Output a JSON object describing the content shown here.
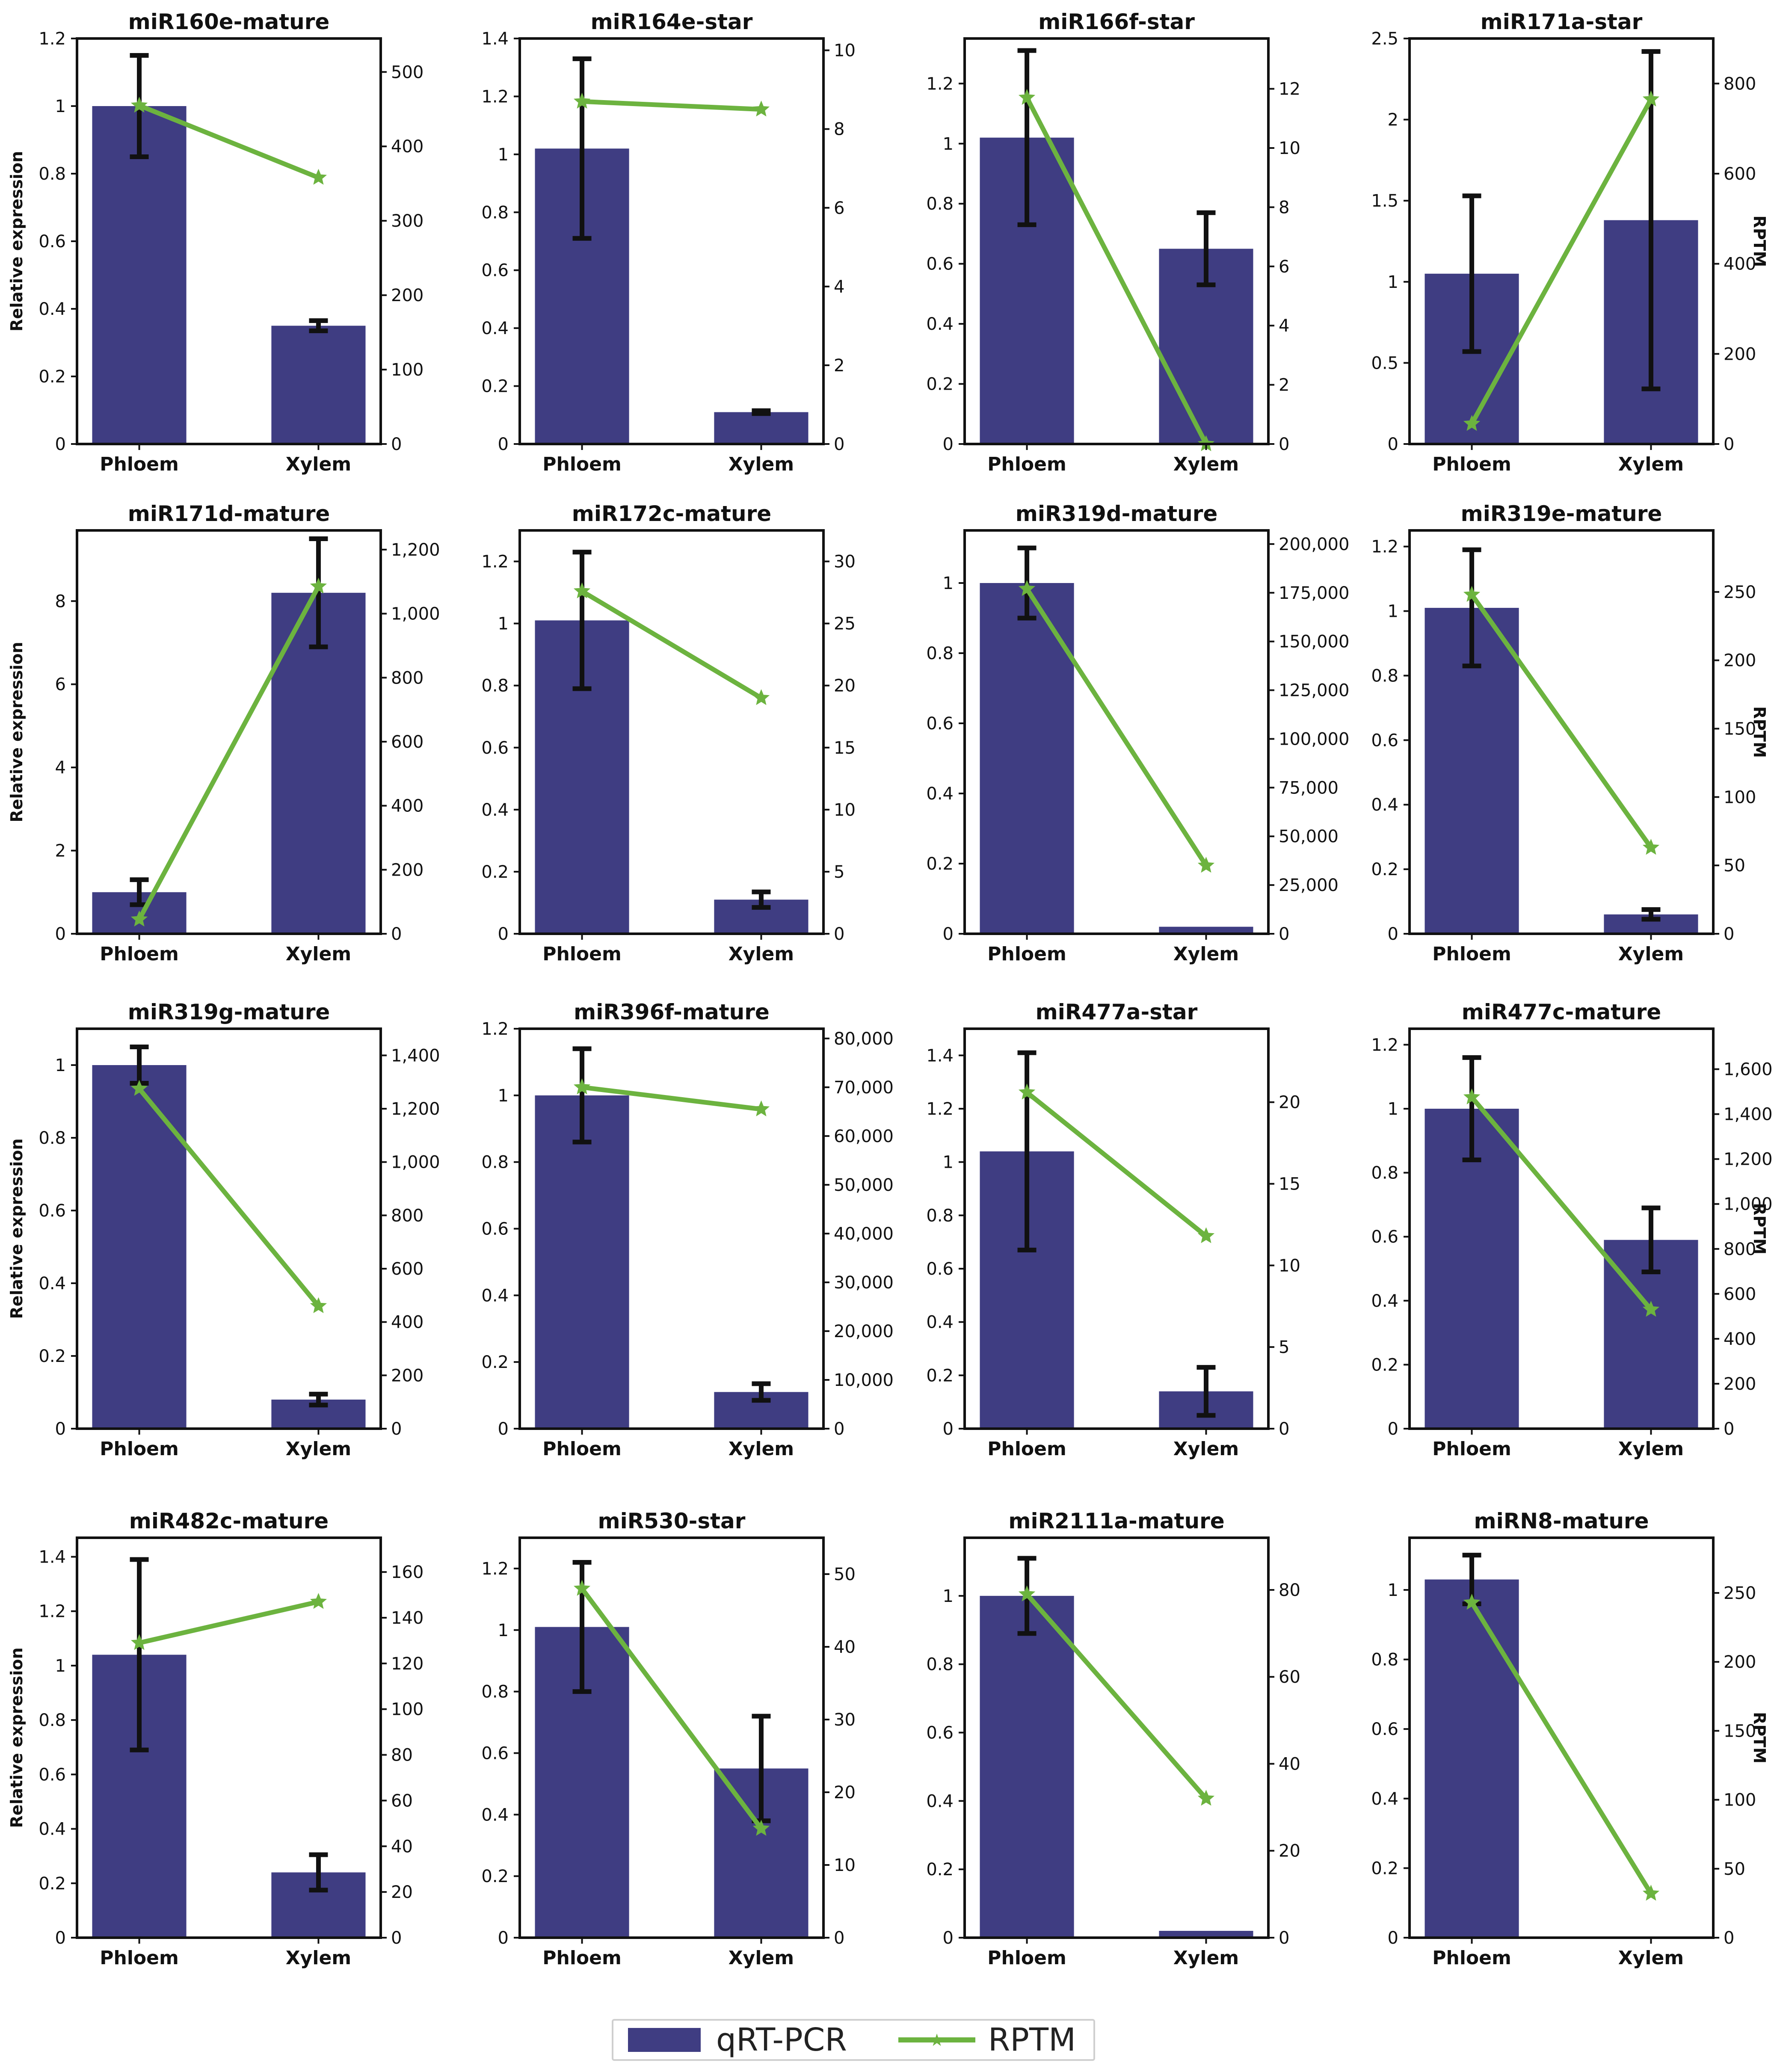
{
  "colors": {
    "bar": "#3f3d82",
    "line": "#6cb33f",
    "error": "#111111",
    "axis": "#111111"
  },
  "legend": {
    "bar_label": "qRT-PCR",
    "line_label": "RPTM"
  },
  "chart_data": [
    {
      "type": "bar",
      "title": "miR160e-mature",
      "categories": [
        "Phloem",
        "Xylem"
      ],
      "values": [
        1.0,
        0.35
      ],
      "errors": [
        0.15,
        0.015
      ],
      "ylim": [
        0,
        1.2
      ],
      "yticks": [
        0,
        0.2,
        0.4,
        0.6,
        0.8,
        1.0,
        1.2
      ],
      "ylabel": "Relative expression",
      "line_values": [
        455,
        358
      ],
      "y2lim": [
        0,
        545
      ],
      "y2ticks": [
        0,
        100,
        200,
        300,
        400,
        500
      ],
      "y2label": ""
    },
    {
      "type": "bar",
      "title": "miR164e-star",
      "categories": [
        "Phloem",
        "Xylem"
      ],
      "values": [
        1.02,
        0.11
      ],
      "errors": [
        0.31,
        0.005
      ],
      "ylim": [
        0,
        1.4
      ],
      "yticks": [
        0,
        0.2,
        0.4,
        0.6,
        0.8,
        1.0,
        1.2,
        1.4
      ],
      "ylabel": "",
      "line_values": [
        8.7,
        8.5
      ],
      "y2lim": [
        0,
        10.3
      ],
      "y2ticks": [
        0,
        2,
        4,
        6,
        8,
        10
      ],
      "y2label": ""
    },
    {
      "type": "bar",
      "title": "miR166f-star",
      "categories": [
        "Phloem",
        "Xylem"
      ],
      "values": [
        1.02,
        0.65
      ],
      "errors": [
        0.29,
        0.12
      ],
      "ylim": [
        0,
        1.35
      ],
      "yticks": [
        0,
        0.2,
        0.4,
        0.6,
        0.8,
        1.0,
        1.2
      ],
      "ylabel": "",
      "line_values": [
        11.7,
        0
      ],
      "y2lim": [
        0,
        13.7
      ],
      "y2ticks": [
        0,
        2,
        4,
        6,
        8,
        10,
        12
      ],
      "y2label": ""
    },
    {
      "type": "bar",
      "title": "miR171a-star",
      "categories": [
        "Phloem",
        "Xylem"
      ],
      "values": [
        1.05,
        1.38
      ],
      "errors": [
        0.48,
        1.04
      ],
      "ylim": [
        0,
        2.5
      ],
      "yticks": [
        0,
        0.5,
        1.0,
        1.5,
        2.0,
        2.5
      ],
      "ylabel": "",
      "line_values": [
        45,
        765
      ],
      "y2lim": [
        0,
        900
      ],
      "y2ticks": [
        0,
        200,
        400,
        600,
        800
      ],
      "y2label": "RPTM"
    },
    {
      "type": "bar",
      "title": "miR171d-mature",
      "categories": [
        "Phloem",
        "Xylem"
      ],
      "values": [
        1.0,
        8.2
      ],
      "errors": [
        0.3,
        1.3
      ],
      "ylim": [
        0,
        9.7
      ],
      "yticks": [
        0,
        2,
        4,
        6,
        8
      ],
      "ylabel": "Relative expression",
      "line_values": [
        45,
        1085
      ],
      "y2lim": [
        0,
        1260
      ],
      "y2ticks": [
        0,
        200,
        400,
        600,
        800,
        1000,
        1200
      ],
      "y2label": ""
    },
    {
      "type": "bar",
      "title": "miR172c-mature",
      "categories": [
        "Phloem",
        "Xylem"
      ],
      "values": [
        1.01,
        0.11
      ],
      "errors": [
        0.22,
        0.025
      ],
      "ylim": [
        0,
        1.3
      ],
      "yticks": [
        0,
        0.2,
        0.4,
        0.6,
        0.8,
        1.0,
        1.2
      ],
      "ylabel": "",
      "line_values": [
        27.6,
        19.0
      ],
      "y2lim": [
        0,
        32.5
      ],
      "y2ticks": [
        0,
        5,
        10,
        15,
        20,
        25,
        30
      ],
      "y2label": ""
    },
    {
      "type": "bar",
      "title": "miR319d-mature",
      "categories": [
        "Phloem",
        "Xylem"
      ],
      "values": [
        1.0,
        0.02
      ],
      "errors": [
        0.1,
        0.0
      ],
      "ylim": [
        0,
        1.15
      ],
      "yticks": [
        0,
        0.2,
        0.4,
        0.6,
        0.8,
        1.0
      ],
      "ylabel": "",
      "line_values": [
        177000,
        35000
      ],
      "y2lim": [
        0,
        207000
      ],
      "y2ticks": [
        0,
        25000,
        50000,
        75000,
        100000,
        125000,
        150000,
        175000,
        200000
      ],
      "y2label": ""
    },
    {
      "type": "bar",
      "title": "miR319e-mature",
      "categories": [
        "Phloem",
        "Xylem"
      ],
      "values": [
        1.01,
        0.06
      ],
      "errors": [
        0.18,
        0.015
      ],
      "ylim": [
        0,
        1.25
      ],
      "yticks": [
        0,
        0.2,
        0.4,
        0.6,
        0.8,
        1.0,
        1.2
      ],
      "ylabel": "",
      "line_values": [
        248,
        63
      ],
      "y2lim": [
        0,
        295
      ],
      "y2ticks": [
        0,
        50,
        100,
        150,
        200,
        250
      ],
      "y2label": "RPTM"
    },
    {
      "type": "bar",
      "title": "miR319g-mature",
      "categories": [
        "Phloem",
        "Xylem"
      ],
      "values": [
        1.0,
        0.08
      ],
      "errors": [
        0.05,
        0.015
      ],
      "ylim": [
        0,
        1.1
      ],
      "yticks": [
        0,
        0.2,
        0.4,
        0.6,
        0.8,
        1.0
      ],
      "ylabel": "Relative expression",
      "line_values": [
        1275,
        460
      ],
      "y2lim": [
        0,
        1500
      ],
      "y2ticks": [
        0,
        200,
        400,
        600,
        800,
        1000,
        1200,
        1400
      ],
      "y2label": ""
    },
    {
      "type": "bar",
      "title": "miR396f-mature",
      "categories": [
        "Phloem",
        "Xylem"
      ],
      "values": [
        1.0,
        0.11
      ],
      "errors": [
        0.14,
        0.025
      ],
      "ylim": [
        0,
        1.2
      ],
      "yticks": [
        0,
        0.2,
        0.4,
        0.6,
        0.8,
        1.0,
        1.2
      ],
      "ylabel": "",
      "line_values": [
        70000,
        65500
      ],
      "y2lim": [
        0,
        82000
      ],
      "y2ticks": [
        0,
        10000,
        20000,
        30000,
        40000,
        50000,
        60000,
        70000,
        80000
      ],
      "y2label": ""
    },
    {
      "type": "bar",
      "title": "miR477a-star",
      "categories": [
        "Phloem",
        "Xylem"
      ],
      "values": [
        1.04,
        0.14
      ],
      "errors": [
        0.37,
        0.09
      ],
      "ylim": [
        0,
        1.5
      ],
      "yticks": [
        0,
        0.2,
        0.4,
        0.6,
        0.8,
        1.0,
        1.2,
        1.4
      ],
      "ylabel": "",
      "line_values": [
        20.6,
        11.8
      ],
      "y2lim": [
        0,
        24.5
      ],
      "y2ticks": [
        0,
        5,
        10,
        15,
        20
      ],
      "y2label": ""
    },
    {
      "type": "bar",
      "title": "miR477c-mature",
      "categories": [
        "Phloem",
        "Xylem"
      ],
      "values": [
        1.0,
        0.59
      ],
      "errors": [
        0.16,
        0.1
      ],
      "ylim": [
        0,
        1.25
      ],
      "yticks": [
        0,
        0.2,
        0.4,
        0.6,
        0.8,
        1.0,
        1.2
      ],
      "ylabel": "",
      "line_values": [
        1475,
        530
      ],
      "y2lim": [
        0,
        1780
      ],
      "y2ticks": [
        0,
        200,
        400,
        600,
        800,
        1000,
        1200,
        1400,
        1600
      ],
      "y2label": "RPTM"
    },
    {
      "type": "bar",
      "title": "miR482c-mature",
      "categories": [
        "Phloem",
        "Xylem"
      ],
      "values": [
        1.04,
        0.24
      ],
      "errors": [
        0.35,
        0.065
      ],
      "ylim": [
        0,
        1.47
      ],
      "yticks": [
        0,
        0.2,
        0.4,
        0.6,
        0.8,
        1.0,
        1.2,
        1.4
      ],
      "ylabel": "Relative expression",
      "line_values": [
        129,
        147
      ],
      "y2lim": [
        0,
        175
      ],
      "y2ticks": [
        0,
        20,
        40,
        60,
        80,
        100,
        120,
        140,
        160
      ],
      "y2label": ""
    },
    {
      "type": "bar",
      "title": "miR530-star",
      "categories": [
        "Phloem",
        "Xylem"
      ],
      "values": [
        1.01,
        0.55
      ],
      "errors": [
        0.21,
        0.17
      ],
      "ylim": [
        0,
        1.3
      ],
      "yticks": [
        0,
        0.2,
        0.4,
        0.6,
        0.8,
        1.0,
        1.2
      ],
      "ylabel": "",
      "line_values": [
        48,
        15
      ],
      "y2lim": [
        0,
        55
      ],
      "y2ticks": [
        0,
        10,
        20,
        30,
        40,
        50
      ],
      "y2label": ""
    },
    {
      "type": "bar",
      "title": "miR2111a-mature",
      "categories": [
        "Phloem",
        "Xylem"
      ],
      "values": [
        1.0,
        0.02
      ],
      "errors": [
        0.11,
        0.0
      ],
      "ylim": [
        0,
        1.17
      ],
      "yticks": [
        0,
        0.2,
        0.4,
        0.6,
        0.8,
        1.0
      ],
      "ylabel": "",
      "line_values": [
        79,
        32
      ],
      "y2lim": [
        0,
        92
      ],
      "y2ticks": [
        0,
        20,
        40,
        60,
        80
      ],
      "y2label": ""
    },
    {
      "type": "bar",
      "title": "miRN8-mature",
      "categories": [
        "Phloem",
        "Xylem"
      ],
      "values": [
        1.03,
        0.0
      ],
      "errors": [
        0.07,
        0.0
      ],
      "ylim": [
        0,
        1.15
      ],
      "yticks": [
        0,
        0.2,
        0.4,
        0.6,
        0.8,
        1.0
      ],
      "ylabel": "",
      "line_values": [
        243,
        32
      ],
      "y2lim": [
        0,
        290
      ],
      "y2ticks": [
        0,
        50,
        100,
        150,
        200,
        250
      ],
      "y2label": "RPTM"
    }
  ]
}
